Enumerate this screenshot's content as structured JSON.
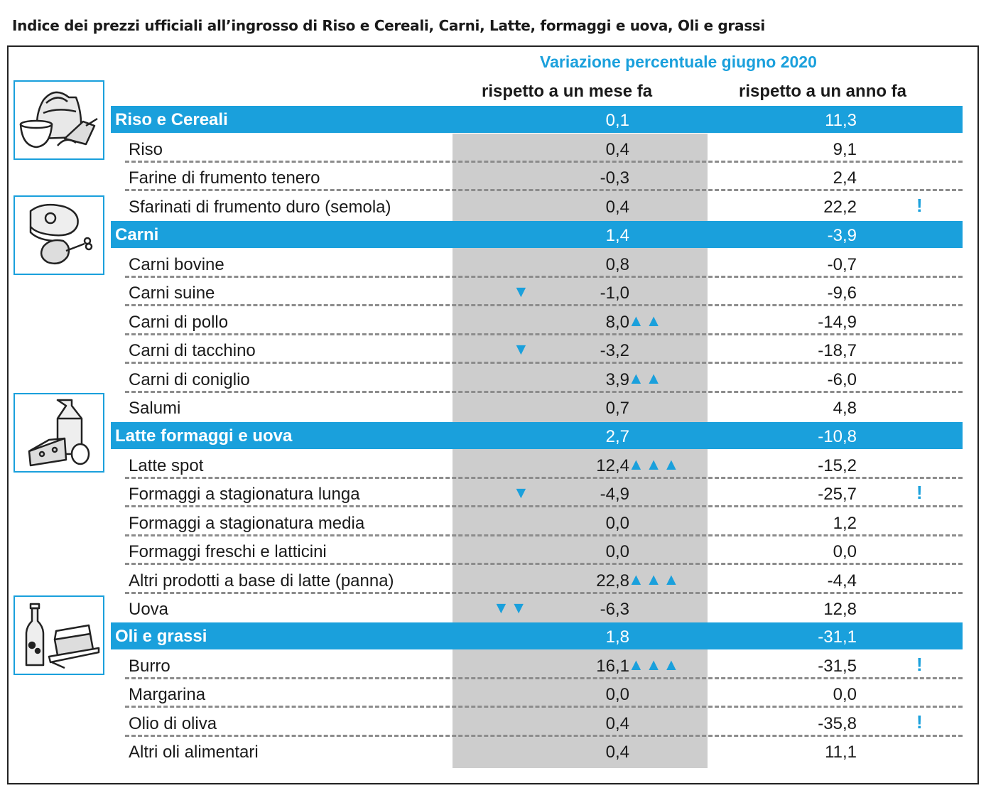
{
  "title": "Indice dei prezzi ufficiali all’ingrosso di Riso e Cereali, Carni, Latte, formaggi e uova, Oli e grassi",
  "header": {
    "variation": "Variazione percentuale giugno 2020",
    "month": "rispetto a un mese fa",
    "year": "rispetto a un anno fa"
  },
  "icons": [
    "grain-sack-icon",
    "meat-icon",
    "dairy-icon",
    "oil-butter-icon"
  ],
  "colors": {
    "accent": "#1aa0dc",
    "band": "#cdcdcd"
  },
  "categories": [
    {
      "label": "Riso e Cereali",
      "month": "0,1",
      "year": "11,3",
      "items": [
        {
          "label": "Riso",
          "month": "0,4",
          "year": "9,1",
          "arrows": "",
          "warn": ""
        },
        {
          "label": "Farine di frumento tenero",
          "month": "-0,3",
          "year": "2,4",
          "arrows": "",
          "warn": ""
        },
        {
          "label": "Sfarinati di frumento duro (semola)",
          "month": "0,4",
          "year": "22,2",
          "arrows": "",
          "warn": "!"
        }
      ]
    },
    {
      "label": "Carni",
      "month": "1,4",
      "year": "-3,9",
      "items": [
        {
          "label": "Carni bovine",
          "month": "0,8",
          "year": "-0,7",
          "arrows": "",
          "warn": ""
        },
        {
          "label": "Carni suine",
          "month": "-1,0",
          "year": "-9,6",
          "arrows": "▼",
          "warn": ""
        },
        {
          "label": "Carni di pollo",
          "month": "8,0",
          "year": "-14,9",
          "arrows": "▲▲",
          "warn": ""
        },
        {
          "label": "Carni di tacchino",
          "month": "-3,2",
          "year": "-18,7",
          "arrows": "▼",
          "warn": ""
        },
        {
          "label": "Carni di coniglio",
          "month": "3,9",
          "year": "-6,0",
          "arrows": "▲▲",
          "warn": ""
        },
        {
          "label": "Salumi",
          "month": "0,7",
          "year": "4,8",
          "arrows": "",
          "warn": ""
        }
      ]
    },
    {
      "label": "Latte formaggi e uova",
      "month": "2,7",
      "year": "-10,8",
      "items": [
        {
          "label": "Latte spot",
          "month": "12,4",
          "year": "-15,2",
          "arrows": "▲▲▲",
          "warn": ""
        },
        {
          "label": "Formaggi a stagionatura lunga",
          "month": "-4,9",
          "year": "-25,7",
          "arrows": "▼",
          "warn": "!"
        },
        {
          "label": "Formaggi a stagionatura media",
          "month": "0,0",
          "year": "1,2",
          "arrows": "",
          "warn": ""
        },
        {
          "label": "Formaggi freschi e latticini",
          "month": "0,0",
          "year": "0,0",
          "arrows": "",
          "warn": ""
        },
        {
          "label": "Altri prodotti a base di latte (panna)",
          "month": "22,8",
          "year": "-4,4",
          "arrows": "▲▲▲",
          "warn": ""
        },
        {
          "label": "Uova",
          "month": "-6,3",
          "year": "12,8",
          "arrows": "▼▼",
          "warn": ""
        }
      ]
    },
    {
      "label": "Oli e grassi",
      "month": "1,8",
      "year": "-31,1",
      "items": [
        {
          "label": "Burro",
          "month": "16,1",
          "year": "-31,5",
          "arrows": "▲▲▲",
          "warn": "!"
        },
        {
          "label": "Margarina",
          "month": "0,0",
          "year": "0,0",
          "arrows": "",
          "warn": ""
        },
        {
          "label": "Olio di oliva",
          "month": "0,4",
          "year": "-35,8",
          "arrows": "",
          "warn": "!"
        },
        {
          "label": "Altri oli alimentari",
          "month": "0,4",
          "year": "11,1",
          "arrows": "",
          "warn": ""
        }
      ]
    }
  ]
}
